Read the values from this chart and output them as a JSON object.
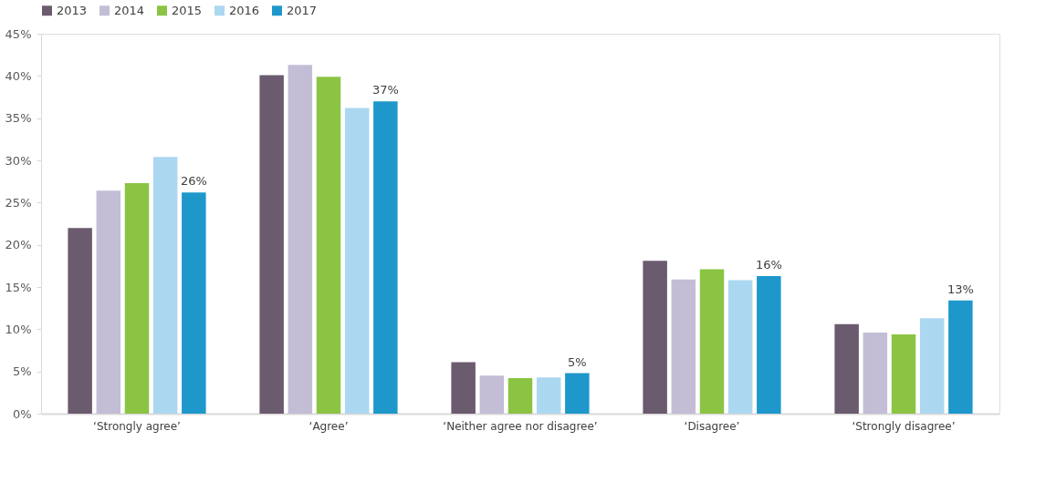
{
  "chart_data": {
    "type": "bar",
    "categories": [
      "‘Strongly agree’",
      "‘Agree’",
      "‘Neither agree nor disagree’",
      "‘Disagree’",
      "‘Strongly disagree’"
    ],
    "series": [
      {
        "name": "2013",
        "color": "#6b5b6e",
        "values": [
          22.0,
          40.1,
          6.1,
          18.1,
          10.6
        ]
      },
      {
        "name": "2014",
        "color": "#c3bdd6",
        "values": [
          26.4,
          41.3,
          4.5,
          15.9,
          9.6
        ]
      },
      {
        "name": "2015",
        "color": "#8bc443",
        "values": [
          27.3,
          39.9,
          4.2,
          17.1,
          9.4
        ]
      },
      {
        "name": "2016",
        "color": "#acd7f0",
        "values": [
          30.4,
          36.2,
          4.3,
          15.8,
          11.3
        ]
      },
      {
        "name": "2017",
        "color": "#1e98cb",
        "values": [
          26.2,
          37.0,
          4.8,
          16.3,
          13.4
        ],
        "value_labels": [
          "26%",
          "37%",
          "5%",
          "16%",
          "13%"
        ]
      }
    ],
    "ylim": [
      0,
      45
    ],
    "yticks": [
      {
        "value": 0,
        "label": "0%"
      },
      {
        "value": 5,
        "label": "5%"
      },
      {
        "value": 10,
        "label": "10%"
      },
      {
        "value": 15,
        "label": "15%"
      },
      {
        "value": 20,
        "label": "20%"
      },
      {
        "value": 25,
        "label": "25%"
      },
      {
        "value": 30,
        "label": "30%"
      },
      {
        "value": 35,
        "label": "35%"
      },
      {
        "value": 40,
        "label": "40%"
      },
      {
        "value": 45,
        "label": "45%"
      }
    ],
    "grid": false,
    "legend": "top"
  }
}
